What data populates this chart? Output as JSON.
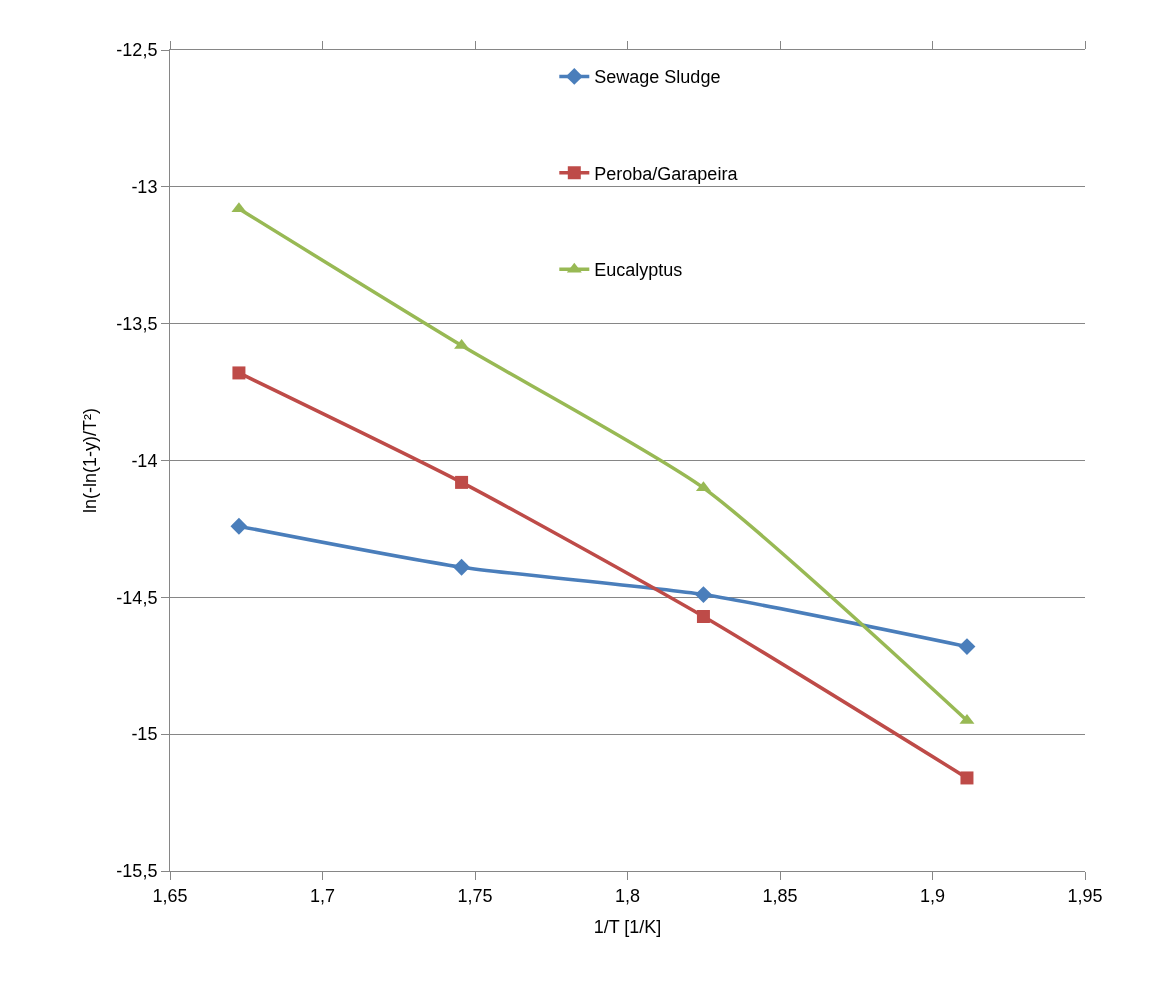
{
  "chart_data": {
    "type": "line",
    "xlabel": "1/T [1/K]",
    "ylabel": "ln(-ln(1-y)/T²)",
    "x": [
      1.6726,
      1.7456,
      1.8249,
      1.9113
    ],
    "series": [
      {
        "name": "Sewage Sludge",
        "color": "#4a7ebb",
        "marker": "diamond",
        "values": [
          -14.24,
          -14.39,
          -14.49,
          -14.68
        ]
      },
      {
        "name": "Peroba/Garapeira",
        "color": "#be4b48",
        "marker": "square",
        "values": [
          -13.68,
          -14.08,
          -14.57,
          -15.16
        ]
      },
      {
        "name": "Eucalyptus",
        "color": "#98b954",
        "marker": "triangle",
        "values": [
          -13.08,
          -13.58,
          -14.1,
          -14.95
        ]
      }
    ],
    "xlim": [
      1.65,
      1.95
    ],
    "xticks": [
      {
        "value": 1.65,
        "label": "1,65"
      },
      {
        "value": 1.7,
        "label": "1,7"
      },
      {
        "value": 1.75,
        "label": "1,75"
      },
      {
        "value": 1.8,
        "label": "1,8"
      },
      {
        "value": 1.85,
        "label": "1,85"
      },
      {
        "value": 1.9,
        "label": "1,9"
      },
      {
        "value": 1.95,
        "label": "1,95"
      }
    ],
    "ylim": [
      -15.5,
      -12.5
    ],
    "yticks": [
      {
        "value": -15.5,
        "label": "-15,5"
      },
      -15,
      {
        "value": -14.5,
        "label": "-14,5"
      },
      -14,
      {
        "value": -13.5,
        "label": "-13,5"
      },
      -13,
      {
        "value": -12.5,
        "label": "-12,5"
      }
    ],
    "grid": "y",
    "legend": "top",
    "line_style": "solid"
  }
}
